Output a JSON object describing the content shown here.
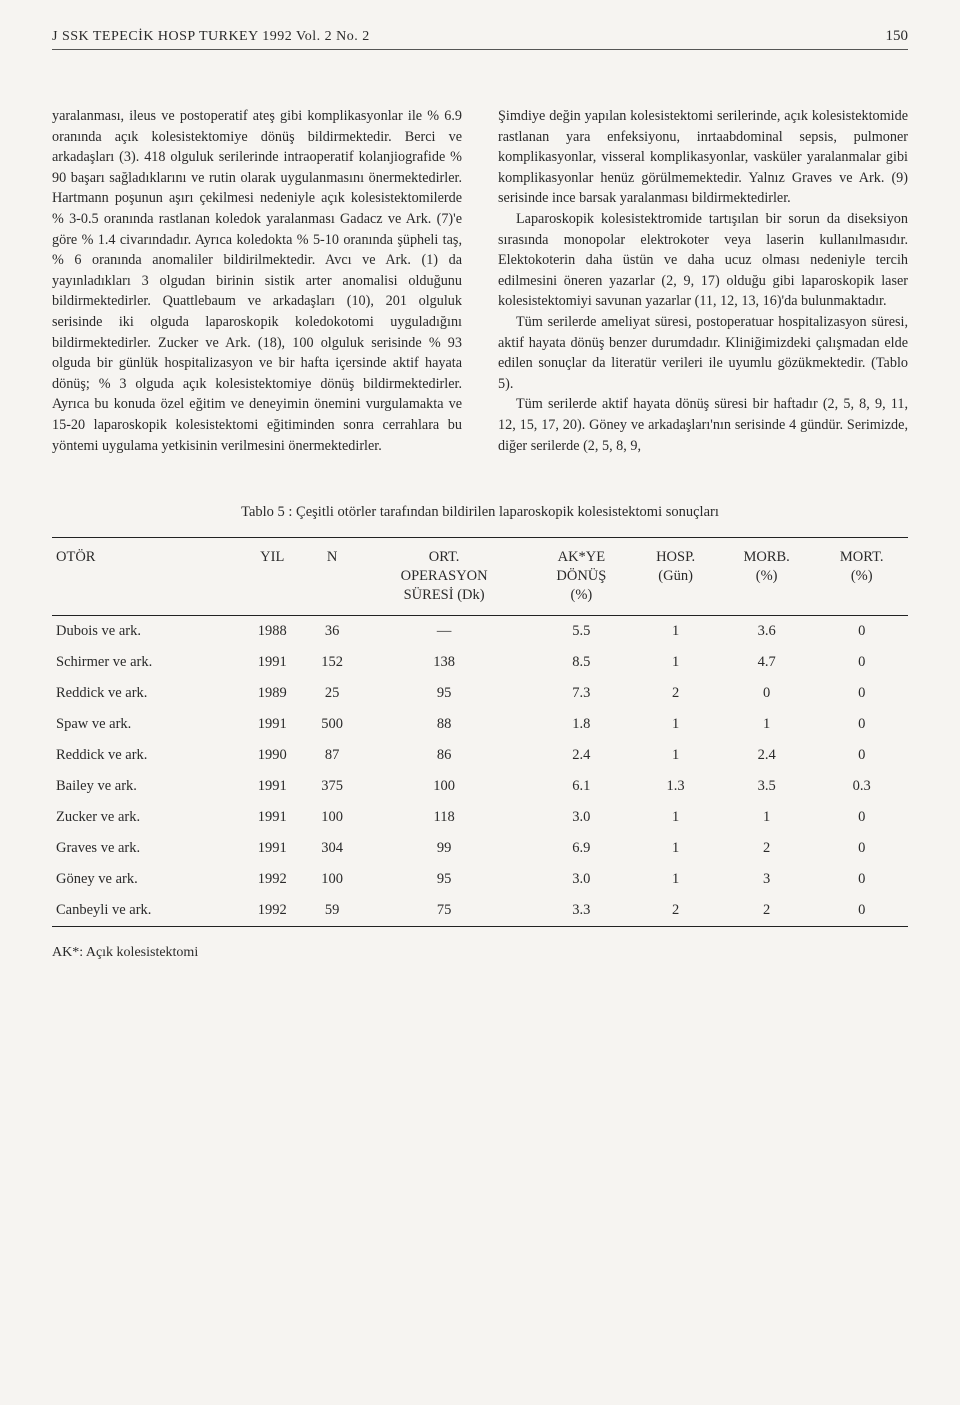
{
  "header": {
    "journal": "J SSK TEPECİK HOSP TURKEY 1992 Vol. 2 No. 2",
    "page": "150"
  },
  "body": {
    "col1": {
      "p1": "yaralanması, ileus ve postoperatif ateş gibi komplikasyonlar ile % 6.9 oranında açık kolesistektomiye dönüş bildirmektedir. Berci ve arkadaşları (3). 418 olguluk serilerinde intraoperatif kolanjiografide % 90 başarı sağladıklarını ve rutin olarak uygulanmasını önermektedirler. Hartmann poşunun aşırı çekilmesi nedeniyle açık kolesistektomilerde % 3-0.5 oranında rastlanan koledok yaralanması Gadacz ve Ark. (7)'e göre % 1.4 civarındadır. Ayrıca koledokta % 5-10 oranında şüpheli taş, % 6 oranında anomaliler bildirilmektedir. Avcı ve Ark. (1) da yayınladıkları 3 olgudan birinin sistik arter anomalisi olduğunu bildirmektedirler. Quattlebaum ve arkadaşları (10), 201 olguluk serisinde iki olguda laparoskopik koledokotomi uyguladığını bildirmektedirler. Zucker ve Ark. (18), 100 olguluk serisinde % 93 olguda bir günlük hospitalizasyon ve bir hafta içersinde aktif hayata dönüş; % 3 olguda açık kolesistektomiye dönüş bildirmektedirler. Ayrıca bu konuda özel eğitim ve deneyimin önemini vurgulamakta ve 15-20 laparoskopik kolesistektomi eğitiminden sonra cerrahlara bu yöntemi uygulama yetkisinin verilmesini önermektedirler."
    },
    "col2": {
      "p1": "Şimdiye değin yapılan kolesistektomi serilerinde, açık kolesistektomide rastlanan yara enfeksiyonu, inrtaabdominal sepsis, pulmoner komplikasyonlar, visseral komplikasyonlar, vasküler yaralanmalar gibi komplikasyonlar henüz görülmemektedir. Yalnız Graves ve Ark. (9) serisinde ince barsak yaralanması bildirmektedirler.",
      "p2": "Laparoskopik kolesistektromide tartışılan bir sorun da diseksiyon sırasında monopolar elektrokoter veya laserin kullanılmasıdır. Elektokoterin daha üstün ve daha ucuz olması nedeniyle tercih edilmesini öneren yazarlar (2, 9, 17) olduğu gibi laparoskopik laser kolesistektomiyi savunan yazarlar (11, 12, 13, 16)'da bulunmaktadır.",
      "p3": "Tüm serilerde ameliyat süresi, postoperatuar hospitalizasyon süresi, aktif hayata dönüş benzer durumdadır. Kliniğimizdeki çalışmadan elde edilen sonuçlar da literatür verileri ile uyumlu gözükmektedir. (Tablo 5).",
      "p4": "Tüm serilerde aktif hayata dönüş süresi bir haftadır (2, 5, 8, 9, 11, 12, 15, 17, 20). Göney ve arkadaşları'nın serisinde 4 gündür. Serimizde, diğer serilerde (2, 5, 8, 9,"
    }
  },
  "table": {
    "caption": "Tablo 5 : Çeşitli otörler tarafından bildirilen laparoskopik kolesistektomi sonuçları",
    "headers": {
      "h1": "OTÖR",
      "h2": "YIL",
      "h3": "N",
      "h4": "ORT.\nOPERASYON\nSÜRESİ (Dk)",
      "h5": "AK*YE\nDÖNÜŞ\n(%)",
      "h6": "HOSP.\n(Gün)",
      "h7": "MORB.\n(%)",
      "h8": "MORT.\n(%)"
    },
    "rows": [
      {
        "c1": "Dubois ve ark.",
        "c2": "1988",
        "c3": "36",
        "c4": "—",
        "c5": "5.5",
        "c6": "1",
        "c7": "3.6",
        "c8": "0"
      },
      {
        "c1": "Schirmer ve ark.",
        "c2": "1991",
        "c3": "152",
        "c4": "138",
        "c5": "8.5",
        "c6": "1",
        "c7": "4.7",
        "c8": "0"
      },
      {
        "c1": "Reddick ve ark.",
        "c2": "1989",
        "c3": "25",
        "c4": "95",
        "c5": "7.3",
        "c6": "2",
        "c7": "0",
        "c8": "0"
      },
      {
        "c1": "Spaw ve ark.",
        "c2": "1991",
        "c3": "500",
        "c4": "88",
        "c5": "1.8",
        "c6": "1",
        "c7": "1",
        "c8": "0"
      },
      {
        "c1": "Reddick ve ark.",
        "c2": "1990",
        "c3": "87",
        "c4": "86",
        "c5": "2.4",
        "c6": "1",
        "c7": "2.4",
        "c8": "0"
      },
      {
        "c1": "Bailey ve ark.",
        "c2": "1991",
        "c3": "375",
        "c4": "100",
        "c5": "6.1",
        "c6": "1.3",
        "c7": "3.5",
        "c8": "0.3"
      },
      {
        "c1": "Zucker ve ark.",
        "c2": "1991",
        "c3": "100",
        "c4": "118",
        "c5": "3.0",
        "c6": "1",
        "c7": "1",
        "c8": "0"
      },
      {
        "c1": "Graves ve ark.",
        "c2": "1991",
        "c3": "304",
        "c4": "99",
        "c5": "6.9",
        "c6": "1",
        "c7": "2",
        "c8": "0"
      },
      {
        "c1": "Göney ve ark.",
        "c2": "1992",
        "c3": "100",
        "c4": "95",
        "c5": "3.0",
        "c6": "1",
        "c7": "3",
        "c8": "0"
      },
      {
        "c1": "Canbeyli ve ark.",
        "c2": "1992",
        "c3": "59",
        "c4": "75",
        "c5": "3.3",
        "c6": "2",
        "c7": "2",
        "c8": "0"
      }
    ],
    "footnote": "AK*: Açık kolesistektomi"
  }
}
